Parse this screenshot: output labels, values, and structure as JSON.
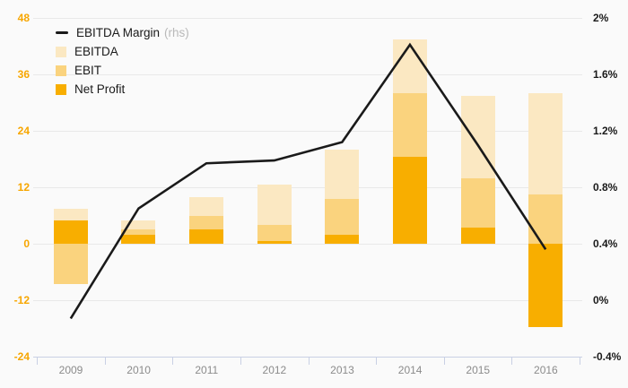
{
  "chart_data": {
    "type": "bar",
    "subtype": "overlapping-bars-with-line",
    "title": "",
    "categories": [
      "2009",
      "2010",
      "2011",
      "2012",
      "2013",
      "2014",
      "2015",
      "2016"
    ],
    "bar_series": [
      {
        "name": "EBITDA",
        "color": "#fbe8c2",
        "values": [
          7.5,
          5,
          10,
          12.5,
          20,
          43.5,
          31.5,
          32
        ]
      },
      {
        "name": "EBIT",
        "color": "#fad37e",
        "values": [
          -8.5,
          3,
          6,
          4,
          9.5,
          32,
          14,
          10.5
        ]
      },
      {
        "name": "Net Profit",
        "color": "#f8ae00",
        "values": [
          5,
          2,
          3,
          0.6,
          2,
          18.5,
          3.5,
          -17.7
        ]
      }
    ],
    "line_series": {
      "name": "EBITDA Margin",
      "axis": "rhs",
      "color": "#1a1a1a",
      "unit": "%",
      "values": [
        -0.13,
        0.65,
        0.97,
        0.99,
        1.12,
        1.81,
        1.1,
        0.36
      ]
    },
    "left_axis": {
      "ticks": [
        48,
        36,
        24,
        12,
        0,
        -12,
        -24
      ],
      "range": [
        -24,
        48
      ],
      "label_color": "#f7a600"
    },
    "right_axis": {
      "ticks": [
        "2%",
        "1.6%",
        "1.2%",
        "0.8%",
        "0.4%",
        "0%",
        "-0.4%"
      ],
      "range": [
        -0.4,
        2
      ]
    },
    "grid": true,
    "legend_position": "top-left",
    "legend": {
      "items": [
        {
          "label": "EBITDA Margin",
          "suffix": "(rhs)",
          "swatch": "line",
          "color": "#1a1a1a"
        },
        {
          "label": "EBITDA",
          "suffix": "",
          "swatch": "box",
          "color": "#fbe8c2"
        },
        {
          "label": "EBIT",
          "suffix": "",
          "swatch": "box",
          "color": "#fad37e"
        },
        {
          "label": "Net Profit",
          "suffix": "",
          "swatch": "box",
          "color": "#f8ae00"
        }
      ]
    }
  }
}
